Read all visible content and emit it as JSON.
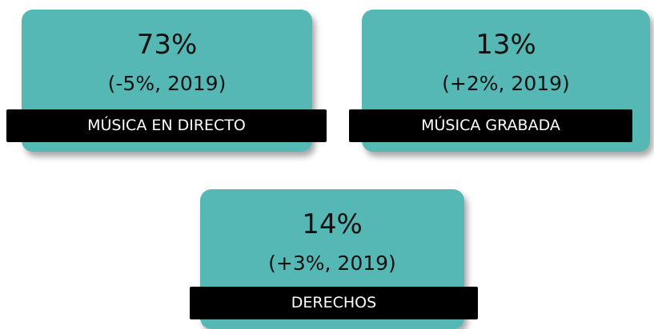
{
  "cards": [
    {
      "value": "73%",
      "change": "(-5%, 2019)",
      "label": "MÚSICA EN DIRECTO"
    },
    {
      "value": "13%",
      "change": "(+2%, 2019)",
      "label": "MÚSICA GRABADA"
    },
    {
      "value": "14%",
      "change": "(+3%, 2019)",
      "label": "DERECHOS"
    }
  ]
}
